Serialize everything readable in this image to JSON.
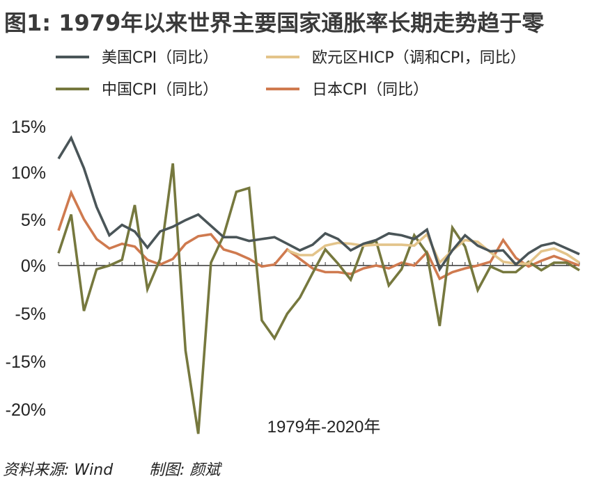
{
  "title": "图1: 1979年以来世界主要国家通胀率长期走势趋于零",
  "footer": {
    "source": "资料来源: Wind",
    "author": "制图: 颜斌"
  },
  "chart_data": {
    "type": "line",
    "title": "图1: 1979年以来世界主要国家通胀率长期走势趋于零",
    "xlabel": "1979年-2020年",
    "ylabel": "",
    "x": [
      1979,
      1980,
      1981,
      1982,
      1983,
      1984,
      1985,
      1986,
      1987,
      1988,
      1989,
      1990,
      1991,
      1992,
      1993,
      1994,
      1995,
      1996,
      1997,
      1998,
      1999,
      2000,
      2001,
      2002,
      2003,
      2004,
      2005,
      2006,
      2007,
      2008,
      2009,
      2010,
      2011,
      2012,
      2013,
      2014,
      2015,
      2016,
      2017,
      2018,
      2019,
      2020
    ],
    "yticks": [
      15,
      10,
      5,
      0,
      -5,
      -15,
      -20
    ],
    "ytick_labels": [
      "15%",
      "10%",
      "5%",
      "0%",
      "-5%",
      "-15%",
      "-20%"
    ],
    "ylim": [
      -20,
      15
    ],
    "grid": false,
    "legend_position": "top",
    "series": [
      {
        "name": "美国CPI（同比）",
        "color": "#4a5558",
        "x": [
          1979,
          1980,
          1981,
          1982,
          1983,
          1984,
          1985,
          1986,
          1987,
          1988,
          1989,
          1990,
          1991,
          1992,
          1993,
          1994,
          1995,
          1996,
          1997,
          1998,
          1999,
          2000,
          2001,
          2002,
          2003,
          2004,
          2005,
          2006,
          2007,
          2008,
          2009,
          2010,
          2011,
          2012,
          2013,
          2014,
          2015,
          2016,
          2017,
          2018,
          2019,
          2020
        ],
        "values": [
          11.3,
          13.5,
          10.3,
          6.2,
          3.2,
          4.3,
          3.6,
          1.9,
          3.6,
          4.1,
          4.8,
          5.4,
          4.2,
          3.0,
          3.0,
          2.6,
          2.8,
          3.0,
          2.3,
          1.6,
          2.2,
          3.4,
          2.8,
          1.6,
          2.3,
          2.7,
          3.4,
          3.2,
          2.8,
          3.8,
          -0.4,
          1.6,
          3.2,
          2.1,
          1.5,
          1.6,
          0.1,
          1.3,
          2.1,
          2.4,
          1.8,
          1.2
        ]
      },
      {
        "name": "欧元区HICP（调和CPI，同比）",
        "color": "#e3c48a",
        "x": [
          1997,
          1998,
          1999,
          2000,
          2001,
          2002,
          2003,
          2004,
          2005,
          2006,
          2007,
          2008,
          2009,
          2010,
          2011,
          2012,
          2013,
          2014,
          2015,
          2016,
          2017,
          2018,
          2019,
          2020
        ],
        "values": [
          1.6,
          1.1,
          1.1,
          2.1,
          2.4,
          2.3,
          2.1,
          2.2,
          2.2,
          2.2,
          2.1,
          3.3,
          0.3,
          1.6,
          2.7,
          2.5,
          1.4,
          0.4,
          0.2,
          0.2,
          1.5,
          1.8,
          1.2,
          0.3
        ]
      },
      {
        "name": "中国CPI（同比）",
        "color": "#76783e",
        "x": [
          1979,
          1980,
          1981,
          1982,
          1983,
          1984,
          1985,
          1986,
          1987,
          1988,
          1989,
          1990,
          1991,
          1992,
          1993,
          1994,
          1995,
          1996,
          1997,
          1998,
          1999,
          2000,
          2001,
          2002,
          2003,
          2004,
          2005,
          2006,
          2007,
          2008,
          2009,
          2010,
          2011,
          2012,
          2013,
          2014,
          2015,
          2016,
          2017,
          2018,
          2019,
          2020
        ],
        "values": [
          1.3,
          5.4,
          -4.8,
          -0.4,
          0.0,
          0.6,
          6.4,
          -2.5,
          0.7,
          10.8,
          -9.0,
          -17.8,
          0.3,
          3.2,
          7.8,
          8.2,
          -5.8,
          -7.7,
          -5.1,
          -3.4,
          -0.8,
          1.7,
          0.2,
          -1.5,
          2.1,
          2.6,
          -2.1,
          -0.4,
          3.2,
          1.3,
          -6.4,
          4.0,
          2.0,
          -2.6,
          -0.1,
          -0.7,
          -0.7,
          0.4,
          -0.5,
          0.3,
          0.3,
          -0.5
        ]
      },
      {
        "name": "日本CPI（同比）",
        "color": "#cf7a4f",
        "x": [
          1979,
          1980,
          1981,
          1982,
          1983,
          1984,
          1985,
          1986,
          1987,
          1988,
          1989,
          1990,
          1991,
          1992,
          1993,
          1994,
          1995,
          1996,
          1997,
          1998,
          1999,
          2000,
          2001,
          2002,
          2003,
          2004,
          2005,
          2006,
          2007,
          2008,
          2009,
          2010,
          2011,
          2012,
          2013,
          2014,
          2015,
          2016,
          2017,
          2018,
          2019,
          2020
        ],
        "values": [
          3.7,
          7.7,
          4.9,
          2.8,
          1.8,
          2.3,
          2.0,
          0.6,
          0.1,
          0.7,
          2.3,
          3.1,
          3.3,
          1.7,
          1.3,
          0.7,
          -0.1,
          0.1,
          1.7,
          0.7,
          -0.3,
          -0.7,
          -0.7,
          -0.9,
          -0.3,
          0.0,
          -0.3,
          0.3,
          0.0,
          1.4,
          -1.4,
          -0.7,
          -0.3,
          0.0,
          0.4,
          2.7,
          0.8,
          -0.1,
          0.5,
          1.0,
          0.5,
          0.0
        ]
      }
    ]
  }
}
